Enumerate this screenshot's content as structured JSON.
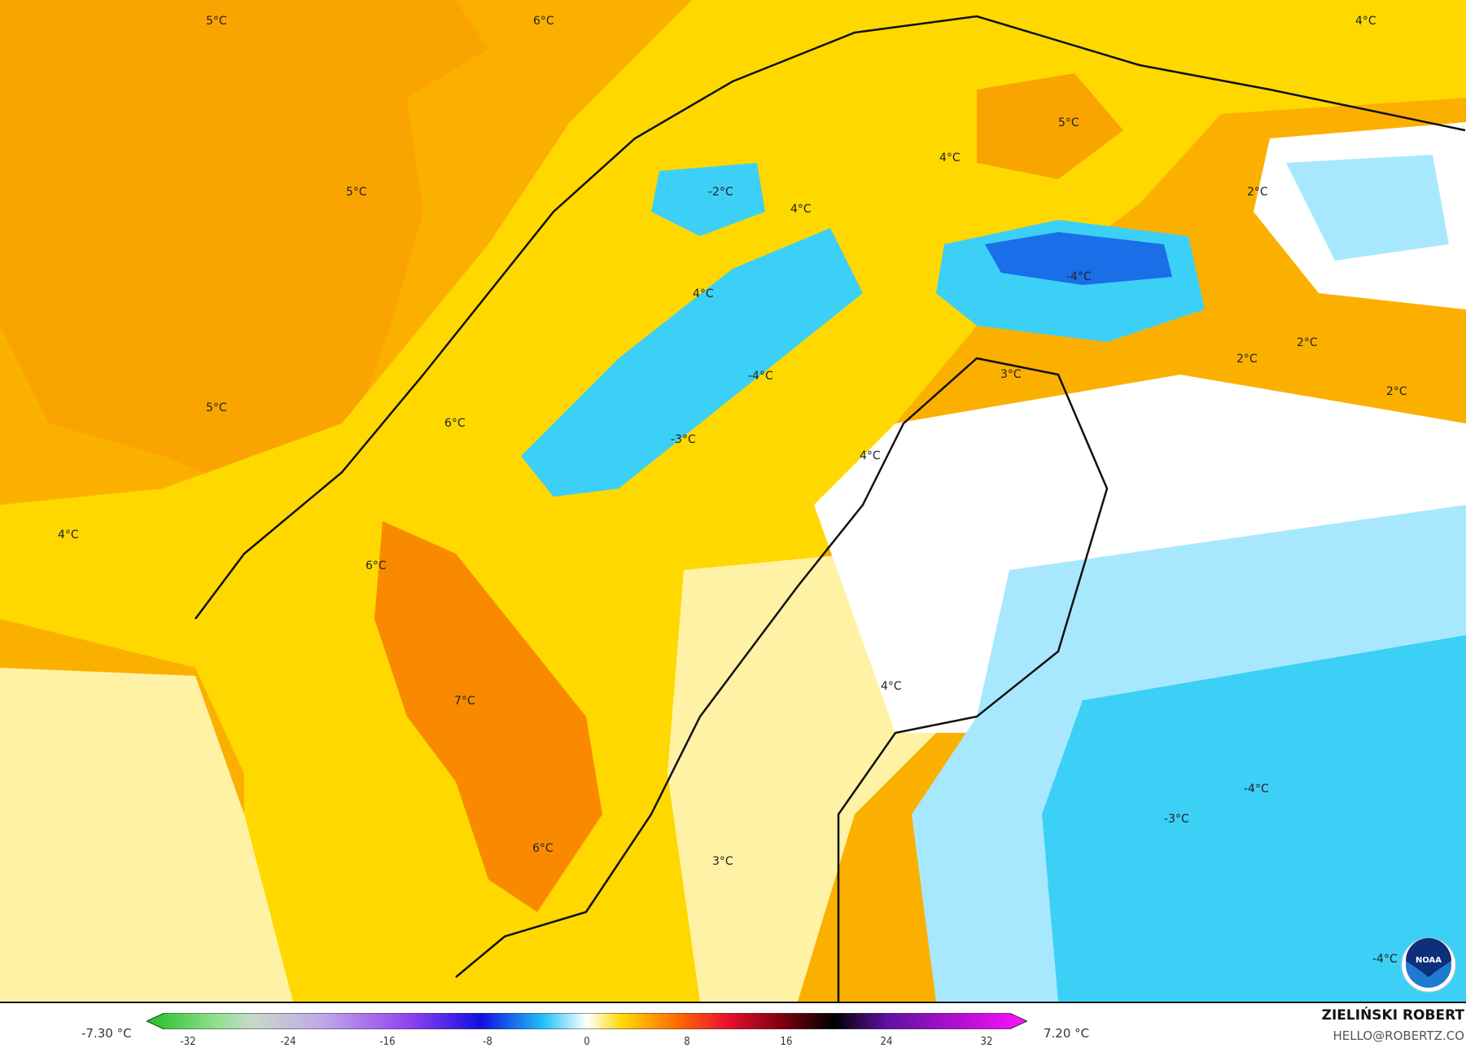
{
  "map": {
    "labels": [
      {
        "text": "5°C"
      },
      {
        "text": "6°C"
      },
      {
        "text": "4°C"
      },
      {
        "text": "5°C"
      },
      {
        "text": "4°C"
      },
      {
        "text": "5°C"
      },
      {
        "text": "-2°C"
      },
      {
        "text": "4°C"
      },
      {
        "text": "2°C"
      },
      {
        "text": "-4°C"
      },
      {
        "text": "4°C"
      },
      {
        "text": "2°C"
      },
      {
        "text": "2°C"
      },
      {
        "text": "3°C"
      },
      {
        "text": "-4°C"
      },
      {
        "text": "2°C"
      },
      {
        "text": "5°C"
      },
      {
        "text": "6°C"
      },
      {
        "text": "-3°C"
      },
      {
        "text": "4°C"
      },
      {
        "text": "4°C"
      },
      {
        "text": "6°C"
      },
      {
        "text": "7°C"
      },
      {
        "text": "4°C"
      },
      {
        "text": "-4°C"
      },
      {
        "text": "-3°C"
      },
      {
        "text": "6°C"
      },
      {
        "text": "3°C"
      },
      {
        "text": "-4°C"
      }
    ],
    "colors": {
      "orange": "#fba800",
      "deep_orange": "#f98a00",
      "yellow": "#ffd900",
      "light_yellow": "#fff3a8",
      "white": "#ffffff",
      "light_blue": "#a8e8ff",
      "cyan": "#3cd0f7",
      "blue": "#1a6ee8"
    },
    "logo": "NOAA"
  },
  "colorbar": {
    "min_label": "-7.30 °C",
    "max_label": "7.20 °C",
    "ticks": [
      "-32",
      "-24",
      "-16",
      "-8",
      "0",
      "8",
      "16",
      "24",
      "32"
    ]
  },
  "signature": {
    "name": "ZIELIŃSKI ROBERT",
    "email": "HELLO@ROBERTZ.CO"
  }
}
